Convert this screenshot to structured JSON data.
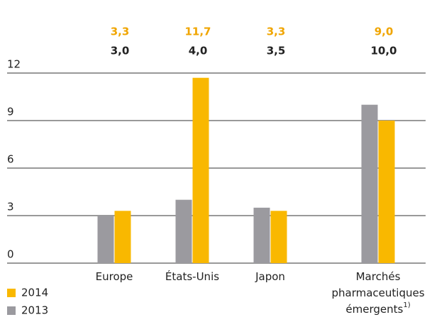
{
  "chart_data": {
    "type": "bar",
    "categories": [
      "Europe",
      "États-Unis",
      "Japon",
      "Marchés pharmaceutiques émergents"
    ],
    "category_footnotes": [
      null,
      null,
      null,
      "1)"
    ],
    "series": [
      {
        "name": "2013",
        "color": "#9b9a9f",
        "values": [
          3.0,
          4.0,
          3.5,
          10.0
        ],
        "value_labels": [
          "3,0",
          "4,0",
          "3,5",
          "10,0"
        ],
        "label_color": "#222222"
      },
      {
        "name": "2014",
        "color": "#f9b800",
        "values": [
          3.3,
          11.7,
          3.3,
          9.0
        ],
        "value_labels": [
          "3,3",
          "11,7",
          "3,3",
          "9,0"
        ],
        "label_color": "#f0a500"
      }
    ],
    "ylim": [
      0,
      12
    ],
    "yticks": [
      0,
      3,
      6,
      9,
      12
    ],
    "grid": true
  }
}
